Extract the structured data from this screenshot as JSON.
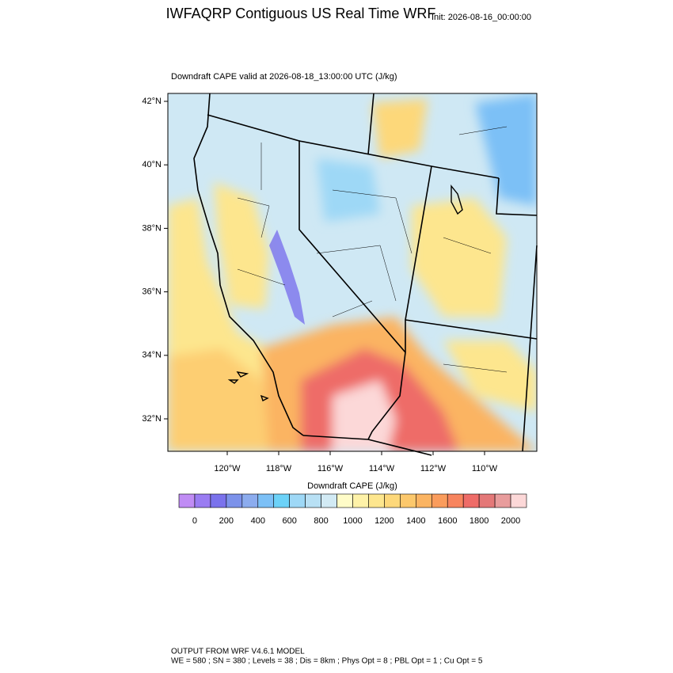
{
  "header": {
    "title": "IWFAQRP Contiguous US Real Time WRF",
    "init": "Init: 2026-08-16_00:00:00"
  },
  "map": {
    "subtitle": "Downdraft CAPE valid at 2026-08-18_13:00:00 UTC   (J/kg)",
    "lat_labels": [
      "42°N",
      "40°N",
      "38°N",
      "36°N",
      "34°N",
      "32°N"
    ],
    "lon_labels": [
      "120°W",
      "118°W",
      "116°W",
      "114°W",
      "112°W",
      "110°W"
    ]
  },
  "colorbar": {
    "title": "Downdraft CAPE  (J/kg)",
    "labels": [
      0,
      200,
      400,
      600,
      800,
      1000,
      1200,
      1400,
      1600,
      1800,
      2000
    ],
    "colors": [
      "#c08cf4",
      "#9a7cf2",
      "#7a72ec",
      "#7c92ea",
      "#8cacee",
      "#7cc0f6",
      "#6cd2f8",
      "#9ed8f6",
      "#b8e0f4",
      "#d2eaf4",
      "#fffcc8",
      "#fef2a8",
      "#fde68e",
      "#fdd87a",
      "#fcc86c",
      "#fbb462",
      "#fa9c5c",
      "#f7845e",
      "#ee6c68",
      "#e47878",
      "#e89c9c",
      "#fcd8d8"
    ]
  },
  "footer": {
    "line1": "OUTPUT FROM WRF V4.6.1 MODEL",
    "line2": "WE = 580 ; SN = 380 ; Levels = 38 ; Dis = 8km ; Phys Opt = 8 ; PBL Opt = 1 ; Cu Opt = 5"
  }
}
